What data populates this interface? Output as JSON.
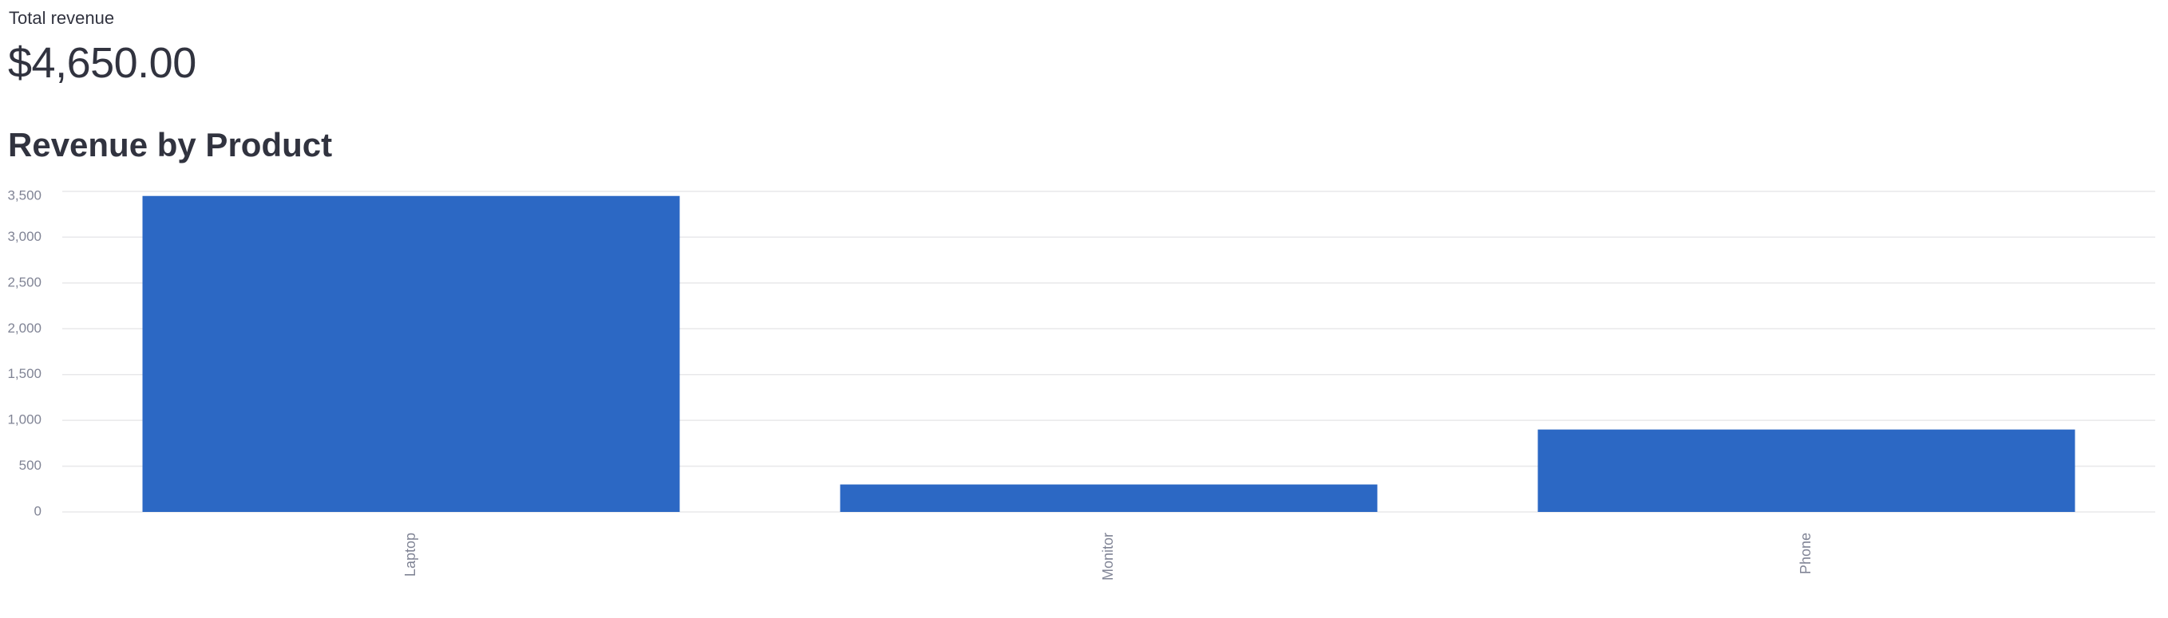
{
  "metric": {
    "label": "Total revenue",
    "value": "$4,650.00"
  },
  "chart_data": {
    "type": "bar",
    "title": "Revenue by Product",
    "xlabel": "",
    "ylabel": "",
    "categories": [
      "Laptop",
      "Monitor",
      "Phone"
    ],
    "values": [
      3450,
      300,
      900
    ],
    "ylim": [
      0,
      3500
    ],
    "yticks": [
      0,
      500,
      1000,
      1500,
      2000,
      2500,
      3000,
      3500
    ],
    "ytick_labels": [
      "0",
      "500",
      "1,000",
      "1,500",
      "2,000",
      "2,500",
      "3,000",
      "3,500"
    ],
    "grid": true,
    "legend": "none",
    "bar_color": "#2c68c4",
    "grid_color": "#e8e8ea"
  }
}
